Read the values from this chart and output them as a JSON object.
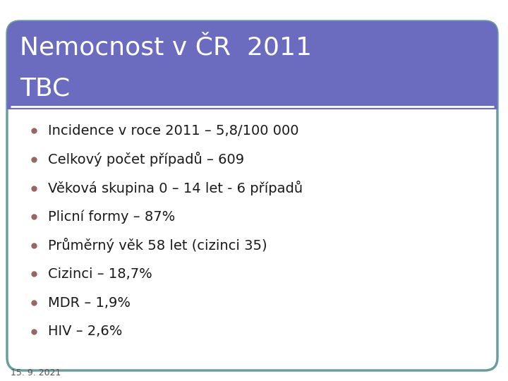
{
  "title_line1": "Nemocnost v ČR  2011",
  "title_line2": "TBC",
  "title_bg_color": "#6B6BBF",
  "title_text_color": "#FFFFFF",
  "border_color": "#6A9E9E",
  "bg_color": "#FFFFFF",
  "slide_bg_color": "#FFFFFF",
  "bullet_color": "#996666",
  "bullet_items": [
    "Incidence v roce 2011 – 5,8/100 000",
    "Celkový počet případů – 609",
    "Věková skupina 0 – 14 let - 6 případů",
    "Plicní formy – 87%",
    "Průměrný věk 58 let (cizinci 35)",
    "Cizinci – 18,7%",
    "MDR – 1,9%",
    "HIV – 2,6%"
  ],
  "footer_text": "15. 9. 2021",
  "footer_color": "#555555",
  "body_text_color": "#1a1a1a",
  "font_size_title": 26,
  "font_size_body": 14,
  "font_size_footer": 9
}
